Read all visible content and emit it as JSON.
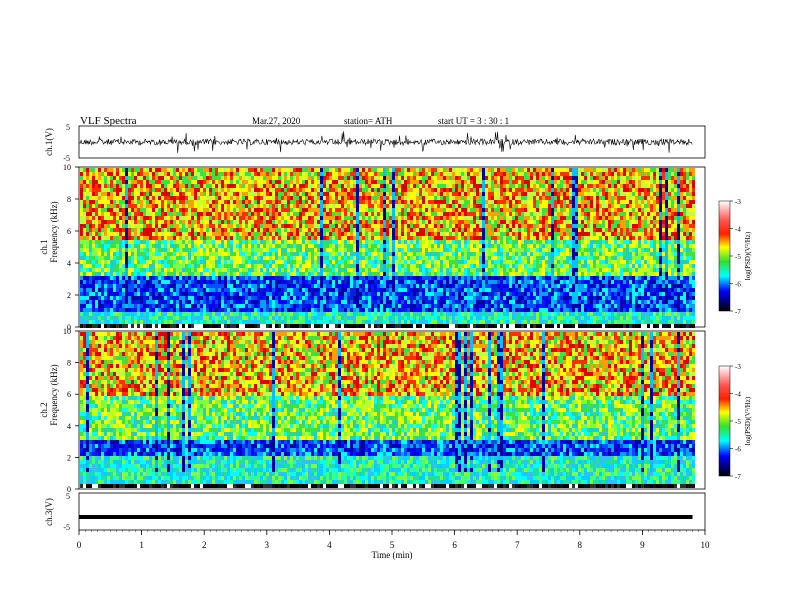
{
  "header": {
    "title": "VLF  Spectra",
    "date": "Mar.27, 2020",
    "station": "station= ATH",
    "start": "start  UT  =   3  : 30 : 1"
  },
  "chart_data": {
    "type": "heatmap",
    "xlabel": "Time  (min)",
    "xlim": [
      0,
      10
    ],
    "x_ticks": [
      "0",
      "1",
      "2",
      "3",
      "4",
      "5",
      "6",
      "7",
      "8",
      "9",
      "10"
    ],
    "data_end_min": 9.8,
    "panels": [
      {
        "id": "ch1-waveform",
        "type": "line",
        "ylabel": "ch.1(V)",
        "ylim": [
          -5,
          5
        ],
        "y_ticks": [
          "5",
          "-5"
        ],
        "baseline_v": 0
      },
      {
        "id": "ch1-spectrogram",
        "type": "heatmap",
        "ylabel_top": "ch.1",
        "ylabel": "Frequency  (kHz)",
        "ylim": [
          0,
          10
        ],
        "y_ticks": [
          "0",
          "2",
          "4",
          "6",
          "8",
          "10"
        ],
        "colorbar": {
          "label": "log(PSD)(V²/Hz)",
          "range": [
            -7,
            -3
          ],
          "ticks": [
            "-3",
            "-4",
            "-5",
            "-6",
            "-7"
          ]
        },
        "bands": [
          {
            "from_khz": 0,
            "to_khz": 0.3,
            "level": "black"
          },
          {
            "from_khz": 0.3,
            "to_khz": 1.0,
            "level": "cyan-green"
          },
          {
            "from_khz": 1.0,
            "to_khz": 3.3,
            "level": "blue"
          },
          {
            "from_khz": 3.3,
            "to_khz": 5.5,
            "level": "green-yellow"
          },
          {
            "from_khz": 5.5,
            "to_khz": 10,
            "level": "yellow-red"
          }
        ]
      },
      {
        "id": "ch2-spectrogram",
        "type": "heatmap",
        "ylabel_top": "ch.2",
        "ylabel": "Frequency  (kHz)",
        "ylim": [
          0,
          10
        ],
        "y_ticks": [
          "0",
          "2",
          "4",
          "6",
          "8",
          "10"
        ],
        "colorbar": {
          "label": "log(PSD)(V²/Hz)",
          "range": [
            -7,
            -3
          ],
          "ticks": [
            "-3",
            "-4",
            "-5",
            "-6",
            "-7"
          ]
        },
        "bands": [
          {
            "from_khz": 0,
            "to_khz": 0.3,
            "level": "black"
          },
          {
            "from_khz": 0.3,
            "to_khz": 2.2,
            "level": "cyan-green"
          },
          {
            "from_khz": 2.2,
            "to_khz": 3.0,
            "level": "blue"
          },
          {
            "from_khz": 3.0,
            "to_khz": 6.0,
            "level": "green-yellow"
          },
          {
            "from_khz": 6.0,
            "to_khz": 10,
            "level": "yellow-red"
          }
        ]
      },
      {
        "id": "ch3-waveform",
        "type": "line",
        "ylabel": "ch.3(V)",
        "ylim": [
          -5,
          5
        ],
        "y_ticks": [
          "5",
          "0",
          "-5"
        ],
        "baseline_v": -1.5
      }
    ]
  }
}
